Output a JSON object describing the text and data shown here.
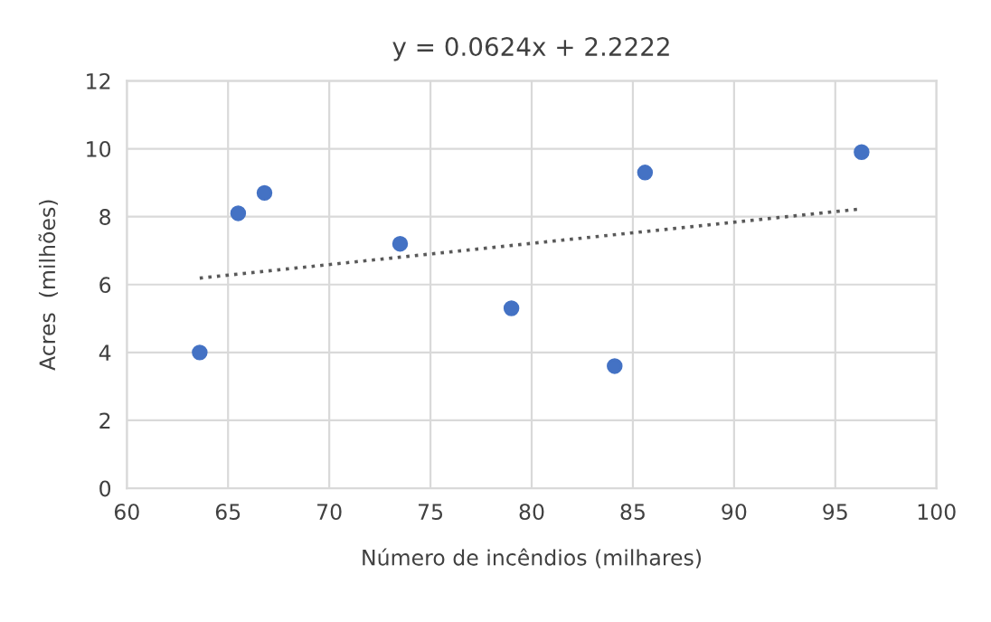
{
  "chart_data": {
    "type": "scatter",
    "title": "y = 0.0624x + 2.2222",
    "xlabel": "Número de incêndios (milhares)",
    "ylabel": "Acres  (milhões)",
    "series": [
      {
        "color": "#4472c4",
        "x": [
          63.6,
          65.5,
          66.8,
          73.5,
          79.0,
          84.1,
          85.6,
          96.3
        ],
        "values": [
          4.0,
          8.1,
          8.7,
          7.2,
          5.3,
          3.6,
          9.3,
          9.9
        ],
        "marker": "circle"
      },
      {
        "type": "line",
        "color": "#595959",
        "x": [
          63.6,
          96.3
        ],
        "values": [
          6.19,
          8.23
        ],
        "line_style": "dotted",
        "marker": "none"
      }
    ],
    "xlim": [
      60,
      100
    ],
    "xticks": [
      60,
      65,
      70,
      75,
      80,
      85,
      90,
      95,
      100
    ],
    "ylim": [
      0,
      12
    ],
    "yticks": [
      0,
      2,
      4,
      6,
      8,
      10,
      12
    ],
    "grid": true
  }
}
